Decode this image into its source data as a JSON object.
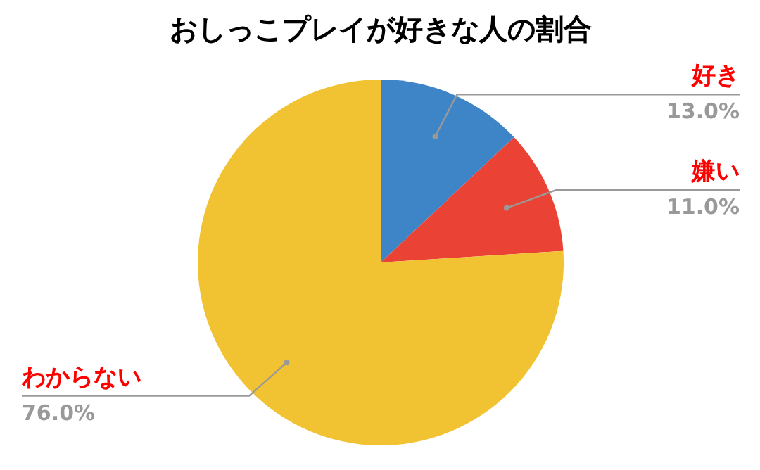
{
  "chart_data": {
    "type": "pie",
    "title": "おしっこプレイが好きな人の割合",
    "categories": [
      "好き",
      "嫌い",
      "わからない"
    ],
    "values": [
      13.0,
      11.0,
      76.0
    ],
    "colors": [
      "#3d85c6",
      "#ea4335",
      "#f1c232"
    ],
    "value_labels": [
      "13.0%",
      "11.0%",
      "76.0%"
    ]
  }
}
